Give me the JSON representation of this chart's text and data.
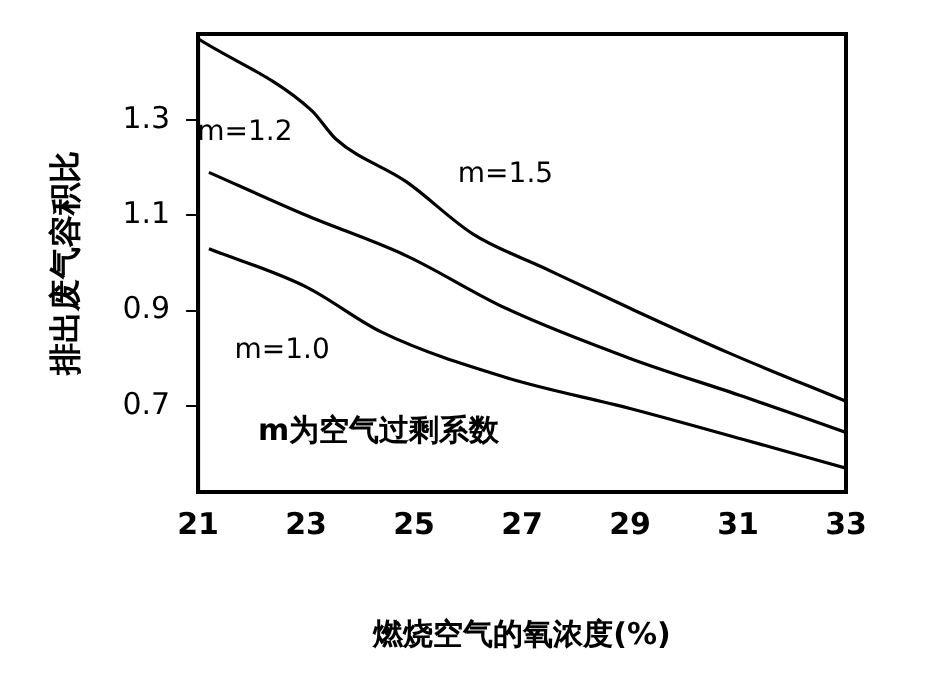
{
  "chart_data": {
    "type": "line",
    "xlabel": "燃烧空气的氧浓度(%)",
    "ylabel": "排出废气容积比",
    "xlim": [
      21,
      33
    ],
    "xticks": [
      21,
      23,
      25,
      27,
      29,
      31,
      33
    ],
    "ylim": [
      0.52,
      1.48
    ],
    "yticks": [
      0.7,
      0.9,
      1.1,
      1.3
    ],
    "grid": false,
    "legend": false,
    "marker": "none",
    "line_style": "solid",
    "series": [
      {
        "name": "m=1.5",
        "color": "#000000",
        "x": [
          21,
          23.1,
          23.55,
          24.86,
          26.1,
          27.4,
          29,
          30.86,
          33
        ],
        "values": [
          1.47,
          1.32,
          1.26,
          1.17,
          1.06,
          0.99,
          0.905,
          0.81,
          0.71
        ]
      },
      {
        "name": "m=1.2",
        "color": "#000000",
        "x": [
          21.2,
          23,
          24.86,
          26.7,
          29,
          31.1,
          33
        ],
        "values": [
          1.19,
          1.1,
          1.015,
          0.905,
          0.8,
          0.72,
          0.645
        ]
      },
      {
        "name": "m=1.0",
        "color": "#000000",
        "x": [
          21.2,
          23,
          24.4,
          26.7,
          29,
          31.1,
          33
        ],
        "values": [
          1.03,
          0.95,
          0.855,
          0.76,
          0.695,
          0.63,
          0.57
        ]
      }
    ],
    "annotations": [
      "m为空气过剩系数"
    ]
  }
}
